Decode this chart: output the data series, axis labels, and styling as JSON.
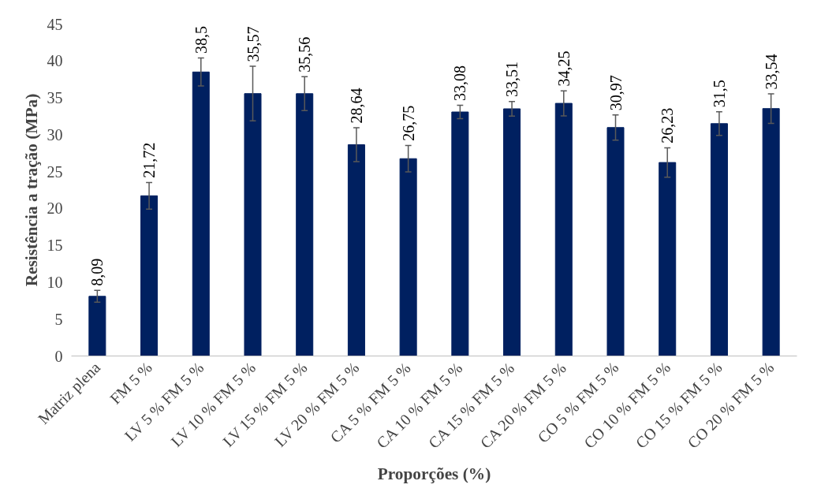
{
  "chart_data": {
    "type": "bar",
    "xlabel": "Proporções (%)",
    "ylabel": "Resistência a tração (MPa)",
    "categories": [
      "Matriz plena",
      "FM 5 %",
      "LV 5 % FM 5 %",
      "LV 10 % FM 5 %",
      "LV 15 % FM 5 %",
      "LV 20 % FM 5 %",
      "CA 5 % FM 5 %",
      "CA 10 % FM 5 %",
      "CA 15 % FM 5 %",
      "CA 20 % FM 5 %",
      "CO 5 % FM 5 %",
      "CO 10 % FM 5 %",
      "CO 15 % FM 5 %",
      "CO 20 % FM 5 %"
    ],
    "values": [
      8.09,
      21.72,
      38.5,
      35.57,
      35.56,
      28.64,
      26.75,
      33.08,
      33.51,
      34.25,
      30.97,
      26.23,
      31.5,
      33.54
    ],
    "value_labels": [
      "8,09",
      "21,72",
      "38,5",
      "35,57",
      "35,56",
      "28,64",
      "26,75",
      "33,08",
      "33,51",
      "34,25",
      "30,97",
      "26,23",
      "31,5",
      "33,54"
    ],
    "errors": [
      0.8,
      1.8,
      1.9,
      3.7,
      2.3,
      2.3,
      1.8,
      0.9,
      1.0,
      1.7,
      1.7,
      2.0,
      1.6,
      2.0
    ],
    "color": "#002060",
    "ylim": [
      0,
      45
    ],
    "yticks": [
      0,
      5,
      10,
      15,
      20,
      25,
      30,
      35,
      40,
      45
    ],
    "grid": false
  }
}
